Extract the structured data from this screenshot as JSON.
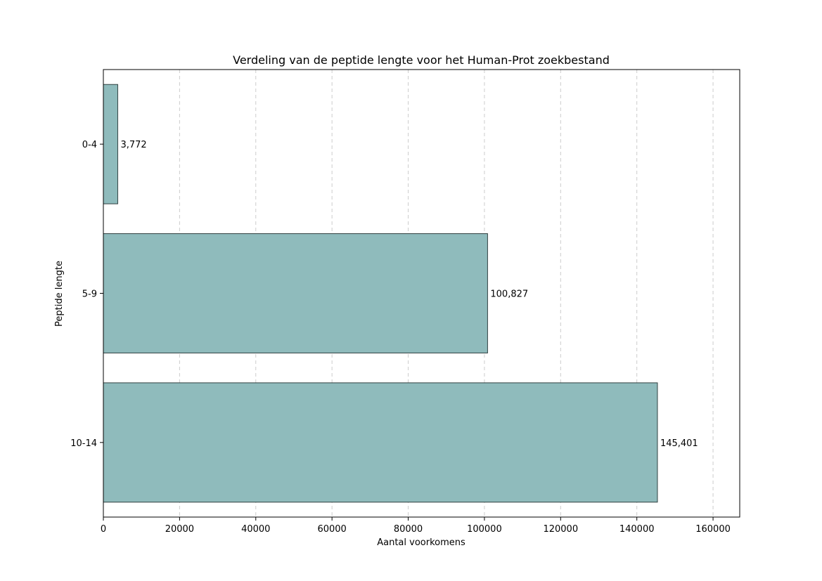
{
  "chart_data": {
    "type": "bar",
    "orientation": "horizontal",
    "title": "Verdeling van de peptide lengte voor het Human-Prot zoekbestand",
    "xlabel": "Aantal voorkomens",
    "ylabel": "Peptide lengte",
    "categories": [
      "0-4",
      "5-9",
      "10-14"
    ],
    "values": [
      3772,
      100827,
      145401
    ],
    "value_labels": [
      "3,772",
      "100,827",
      "145,401"
    ],
    "xlim": [
      0,
      167000
    ],
    "x_ticks": [
      0,
      20000,
      40000,
      60000,
      80000,
      100000,
      120000,
      140000,
      160000
    ],
    "x_tick_labels": [
      "0",
      "20000",
      "40000",
      "60000",
      "80000",
      "100000",
      "120000",
      "140000",
      "160000"
    ],
    "grid": "x-dashed",
    "colors": {
      "bar_fill": "#8fbbbc",
      "bar_edge": "#2f3f3f",
      "grid": "#cccccc",
      "axis": "#000000"
    }
  }
}
